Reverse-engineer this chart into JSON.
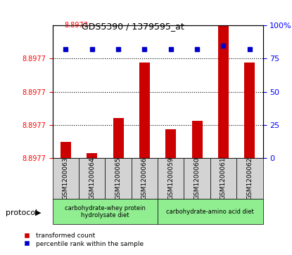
{
  "title": "GDS5390 / 1379595_at",
  "title_red": "8.8977",
  "samples": [
    "GSM1200063",
    "GSM1200064",
    "GSM1200065",
    "GSM1200066",
    "GSM1200059",
    "GSM1200060",
    "GSM1200061",
    "GSM1200062"
  ],
  "red_values": [
    0.12,
    0.04,
    0.3,
    0.72,
    0.22,
    0.28,
    1.0,
    0.72
  ],
  "blue_values": [
    82,
    82,
    82,
    82,
    82,
    82,
    85,
    82
  ],
  "ylim_left": [
    0,
    1.0
  ],
  "ylim_right": [
    0,
    100
  ],
  "yticks_left": [
    0,
    0.25,
    0.5,
    0.75
  ],
  "ytick_labels_left": [
    "8.8977",
    "8.8977",
    "8.8977",
    "8.8977"
  ],
  "yticks_right": [
    0,
    25,
    50,
    75,
    100
  ],
  "ytick_labels_right": [
    "0",
    "25",
    "50",
    "75",
    "100%"
  ],
  "protocol_groups": [
    {
      "label": "carbohydrate-whey protein\nhydrolysate diet",
      "start": 0,
      "end": 4,
      "color": "#90EE90"
    },
    {
      "label": "carbohydrate-amino acid diet",
      "start": 4,
      "end": 8,
      "color": "#90EE90"
    }
  ],
  "legend_red": "transformed count",
  "legend_blue": "percentile rank within the sample",
  "bar_color": "#CC0000",
  "dot_color": "#0000CC",
  "bg_color": "#f0f0f0",
  "grid_color": "#000000",
  "dotted_levels": [
    0.25,
    0.5,
    0.75
  ],
  "protocol_label": "protocol"
}
